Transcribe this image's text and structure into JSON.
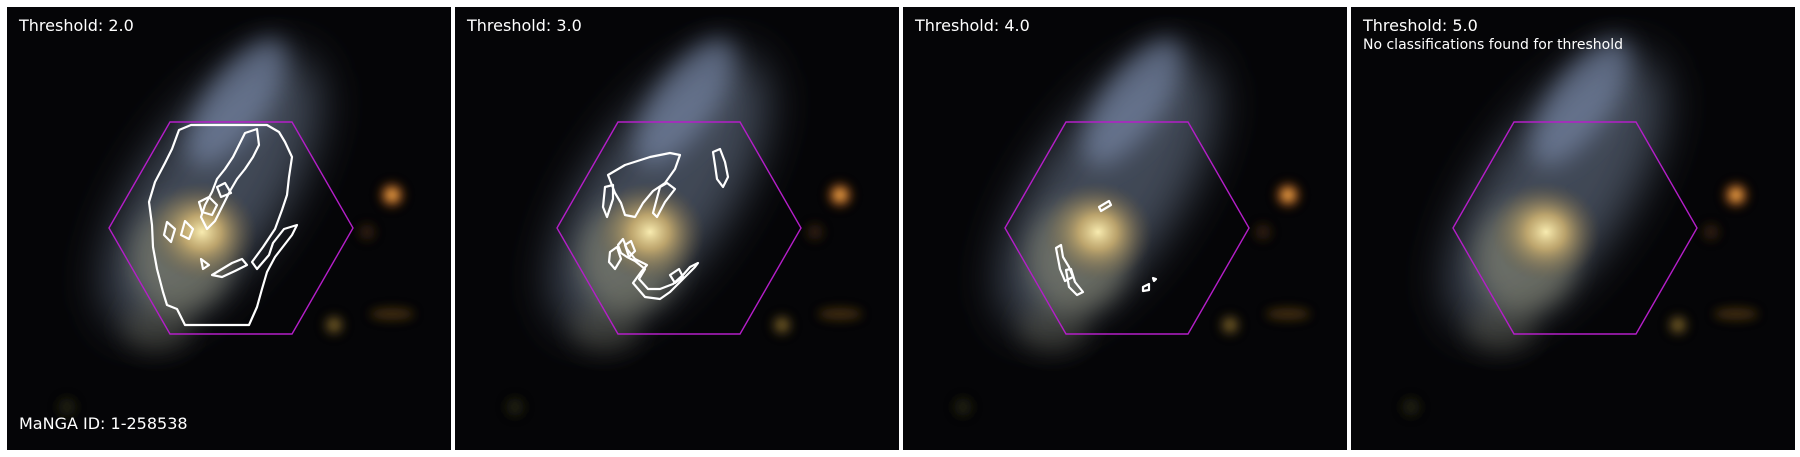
{
  "galaxy": {
    "manga_id_label": "MaNGA ID: 1-258538"
  },
  "colors": {
    "hexagon": "#b41ec8",
    "contour": "#ffffff",
    "label_text": "#ffffff",
    "panel_background": "#050507"
  },
  "panels": [
    {
      "title": "Threshold: 2.0",
      "threshold": 2.0,
      "note": ""
    },
    {
      "title": "Threshold: 3.0",
      "threshold": 3.0,
      "note": ""
    },
    {
      "title": "Threshold: 4.0",
      "threshold": 4.0,
      "note": ""
    },
    {
      "title": "Threshold: 5.0",
      "threshold": 5.0,
      "note": "No classifications found for threshold"
    }
  ]
}
